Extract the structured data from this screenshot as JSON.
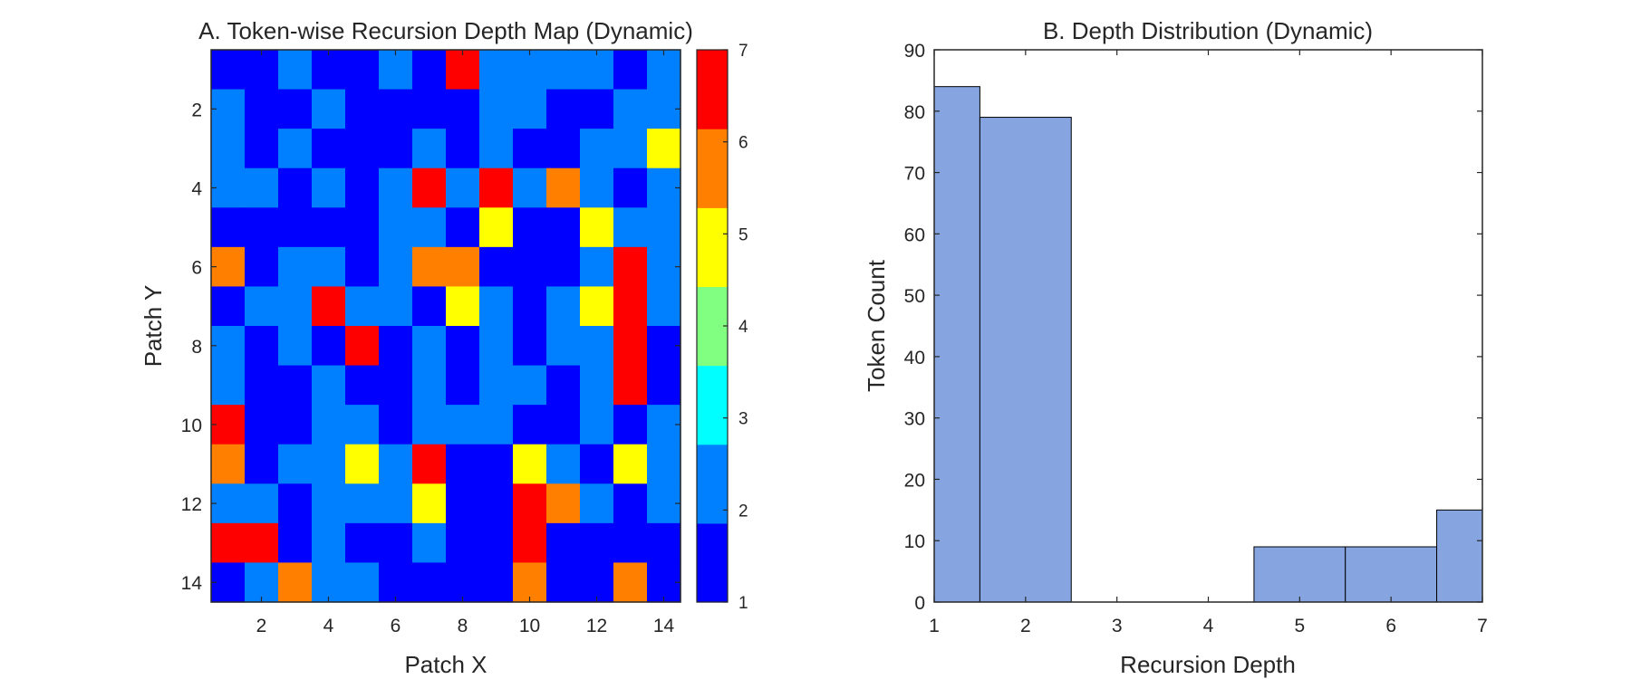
{
  "chart_data": [
    {
      "type": "heatmap",
      "title": "A. Token-wise Recursion Depth Map (Dynamic)",
      "xlabel": "Patch X",
      "ylabel": "Patch Y",
      "x_ticks": [
        "2",
        "4",
        "6",
        "8",
        "10",
        "12",
        "14"
      ],
      "y_ticks": [
        "2",
        "4",
        "6",
        "8",
        "10",
        "12",
        "14"
      ],
      "rows": 14,
      "cols": 14,
      "values": [
        [
          1,
          1,
          2,
          1,
          1,
          2,
          1,
          7,
          2,
          2,
          2,
          2,
          1,
          2
        ],
        [
          2,
          1,
          1,
          2,
          1,
          1,
          1,
          1,
          2,
          2,
          1,
          1,
          2,
          2
        ],
        [
          2,
          1,
          2,
          1,
          1,
          1,
          2,
          1,
          2,
          1,
          1,
          2,
          2,
          5
        ],
        [
          2,
          2,
          1,
          2,
          1,
          2,
          7,
          2,
          7,
          2,
          6,
          2,
          1,
          2
        ],
        [
          1,
          1,
          1,
          1,
          1,
          2,
          2,
          1,
          5,
          1,
          1,
          5,
          2,
          2
        ],
        [
          6,
          1,
          2,
          2,
          1,
          2,
          6,
          6,
          1,
          1,
          1,
          2,
          7,
          2
        ],
        [
          1,
          2,
          2,
          7,
          2,
          2,
          1,
          5,
          2,
          1,
          2,
          5,
          7,
          2
        ],
        [
          2,
          1,
          2,
          1,
          7,
          1,
          2,
          1,
          2,
          1,
          2,
          2,
          7,
          1
        ],
        [
          2,
          1,
          1,
          2,
          1,
          1,
          2,
          1,
          2,
          2,
          1,
          2,
          7,
          1
        ],
        [
          7,
          1,
          1,
          2,
          2,
          1,
          2,
          2,
          2,
          1,
          1,
          2,
          1,
          2
        ],
        [
          6,
          1,
          2,
          2,
          5,
          2,
          7,
          1,
          1,
          5,
          2,
          1,
          5,
          2
        ],
        [
          2,
          2,
          1,
          2,
          2,
          2,
          5,
          1,
          1,
          7,
          6,
          2,
          1,
          2
        ],
        [
          7,
          7,
          1,
          2,
          1,
          1,
          2,
          1,
          1,
          7,
          1,
          1,
          1,
          1
        ],
        [
          1,
          2,
          6,
          2,
          2,
          1,
          1,
          1,
          1,
          6,
          1,
          1,
          6,
          1
        ]
      ],
      "colorbar": {
        "ticks": [
          "1",
          "2",
          "3",
          "4",
          "5",
          "6",
          "7"
        ],
        "range": [
          1,
          7
        ],
        "colors": [
          "#0000ff",
          "#0080ff",
          "#00ffff",
          "#80ff80",
          "#ffff00",
          "#ff8000",
          "#ff0000"
        ]
      }
    },
    {
      "type": "bar",
      "title": "B. Depth Distribution (Dynamic)",
      "xlabel": "Recursion Depth",
      "ylabel": "Token Count",
      "categories": [
        "1",
        "2",
        "3",
        "4",
        "5",
        "6",
        "7"
      ],
      "values": [
        84,
        79,
        0,
        0,
        9,
        9,
        15
      ],
      "xlim": [
        1,
        7
      ],
      "ylim": [
        0,
        90
      ],
      "y_ticks": [
        "0",
        "10",
        "20",
        "30",
        "40",
        "50",
        "60",
        "70",
        "80",
        "90"
      ],
      "bar_color": "#85a4e0"
    }
  ]
}
